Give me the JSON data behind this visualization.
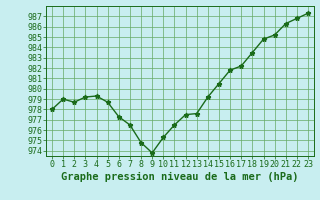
{
  "x": [
    0,
    1,
    2,
    3,
    4,
    5,
    6,
    7,
    8,
    9,
    10,
    11,
    12,
    13,
    14,
    15,
    16,
    17,
    18,
    19,
    20,
    21,
    22,
    23
  ],
  "y": [
    978.0,
    979.0,
    978.7,
    979.2,
    979.3,
    978.7,
    977.3,
    976.5,
    974.8,
    973.8,
    975.3,
    976.5,
    977.5,
    977.6,
    979.2,
    980.5,
    981.8,
    982.2,
    983.5,
    984.8,
    985.2,
    986.3,
    986.8,
    987.3
  ],
  "line_color": "#1a6b1a",
  "marker": "*",
  "marker_color": "#1a6b1a",
  "bg_color": "#c8eef0",
  "grid_color": "#66aa66",
  "xlabel": "Graphe pression niveau de la mer (hPa)",
  "xlabel_color": "#1a6b1a",
  "tick_color": "#1a6b1a",
  "ylim_min": 973.5,
  "ylim_max": 988.0,
  "yticks": [
    974,
    975,
    976,
    977,
    978,
    979,
    980,
    981,
    982,
    983,
    984,
    985,
    986,
    987
  ],
  "xlim_min": -0.5,
  "xlim_max": 23.5,
  "xticks": [
    0,
    1,
    2,
    3,
    4,
    5,
    6,
    7,
    8,
    9,
    10,
    11,
    12,
    13,
    14,
    15,
    16,
    17,
    18,
    19,
    20,
    21,
    22,
    23
  ],
  "xtick_labels": [
    "0",
    "1",
    "2",
    "3",
    "4",
    "5",
    "6",
    "7",
    "8",
    "9",
    "10",
    "11",
    "12",
    "13",
    "14",
    "15",
    "16",
    "17",
    "18",
    "19",
    "20",
    "21",
    "22",
    "23"
  ],
  "xlabel_fontsize": 7.5,
  "tick_fontsize": 6,
  "linewidth": 1.0,
  "markersize": 3.5
}
